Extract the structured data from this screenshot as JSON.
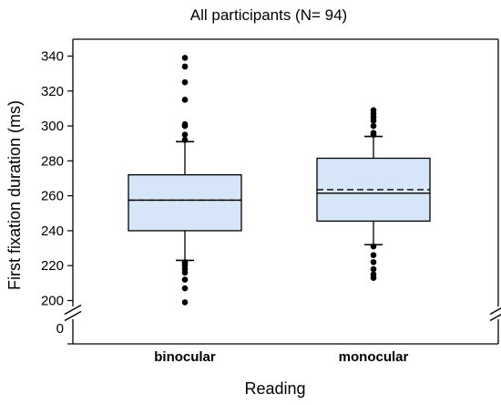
{
  "chart_data": {
    "type": "boxplot",
    "title": "All participants (N= 94)",
    "xlabel": "Reading",
    "ylabel": "First fixation duration (ms)",
    "ylim": [
      200,
      340
    ],
    "axis_break": true,
    "axis_break_label": "0",
    "yticks": [
      200,
      220,
      240,
      260,
      280,
      300,
      320,
      340
    ],
    "grid": false,
    "legend": "none",
    "box_color": "#d6e6f8",
    "categories": [
      "binocular",
      "monocular"
    ],
    "boxes": [
      {
        "name": "binocular",
        "q1": 240,
        "median": 257.5,
        "mean": 257.5,
        "q3": 272,
        "whisker_low": 223,
        "whisker_high": 291,
        "outliers": [
          199,
          207,
          212,
          216,
          218,
          220,
          221,
          222,
          292,
          295,
          300,
          301,
          315,
          325,
          334,
          339
        ]
      },
      {
        "name": "monocular",
        "q1": 245.5,
        "median": 261.5,
        "mean": 263.5,
        "q3": 281.5,
        "whisker_low": 232,
        "whisker_high": 294,
        "outliers": [
          213,
          215,
          218,
          222,
          226,
          231,
          295,
          296,
          300,
          303,
          305,
          307,
          309
        ]
      }
    ]
  }
}
